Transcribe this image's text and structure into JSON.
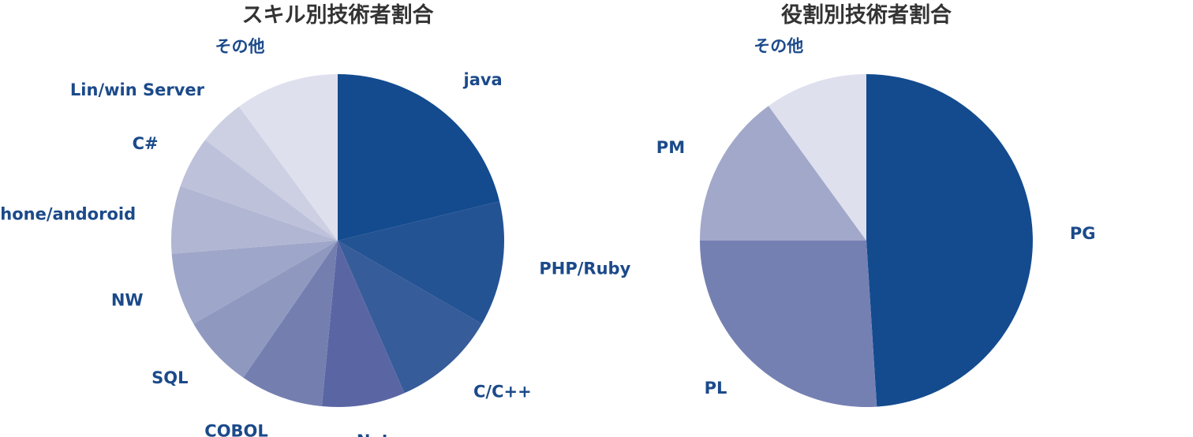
{
  "chart_data": [
    {
      "type": "pie",
      "title": "スキル別技術者割合",
      "categories": [
        "java",
        "PHP/Ruby",
        "C/C++",
        ".Net",
        "COBOL",
        "SQL",
        "NW",
        "iPhone/andoroid",
        "C#",
        "Lin/win Server",
        "その他"
      ],
      "values": [
        21,
        12,
        10,
        8,
        8,
        7,
        7,
        6.5,
        5,
        4.5,
        10
      ],
      "colors": [
        "#134b8e",
        "#245394",
        "#365c99",
        "#5a66a4",
        "#747fb0",
        "#8f99c0",
        "#9ea6c9",
        "#b1b6d3",
        "#bec1da",
        "#cdd0e3",
        "#dfe0ee"
      ],
      "label_color": "#1b4a8a",
      "legend": "none",
      "units": "%"
    },
    {
      "type": "pie",
      "title": "役割別技術者割合",
      "categories": [
        "PG",
        "PL",
        "PM",
        "その他"
      ],
      "values": [
        49,
        26,
        15,
        10
      ],
      "colors": [
        "#134b8e",
        "#7580b2",
        "#a2a8ca",
        "#dfe0ee"
      ],
      "label_color": "#1b4a8a",
      "legend": "none",
      "units": "%"
    }
  ]
}
